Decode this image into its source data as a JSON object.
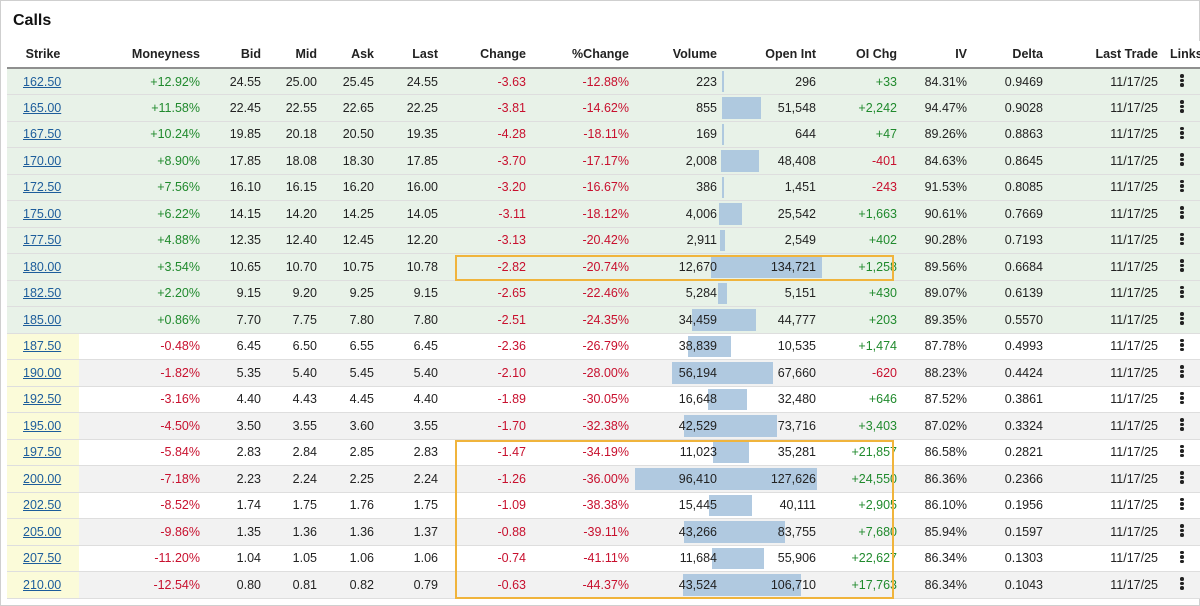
{
  "title": "Calls",
  "columns": [
    "Strike",
    "Moneyness",
    "Bid",
    "Mid",
    "Ask",
    "Last",
    "Change",
    "%Change",
    "Volume",
    "Open Int",
    "OI Chg",
    "IV",
    "Delta",
    "Last Trade",
    "Links"
  ],
  "links_icon": "vertical-ellipsis-icon",
  "colors": {
    "negative": "#c8102e",
    "positive": "#208a2d",
    "itm_row": "#e8f2e8",
    "strike_otm": "#fbfbd9",
    "bar": "#a9c4de",
    "highlight": "#f0b43c"
  },
  "rows": [
    {
      "strike": "162.50",
      "moneyness": "+12.92%",
      "bid": "24.55",
      "mid": "25.00",
      "ask": "25.45",
      "last": "24.55",
      "change": "-3.63",
      "pct_change": "-12.88%",
      "volume": "223",
      "open_int": "296",
      "oi_chg": "+33",
      "iv": "84.31%",
      "delta": "0.9469",
      "last_trade": "11/17/25",
      "itm": true,
      "volume_num": 223,
      "open_int_num": 296
    },
    {
      "strike": "165.00",
      "moneyness": "+11.58%",
      "bid": "22.45",
      "mid": "22.55",
      "ask": "22.65",
      "last": "22.25",
      "change": "-3.81",
      "pct_change": "-14.62%",
      "volume": "855",
      "open_int": "51,548",
      "oi_chg": "+2,242",
      "iv": "94.47%",
      "delta": "0.9028",
      "last_trade": "11/17/25",
      "itm": true,
      "volume_num": 855,
      "open_int_num": 51548
    },
    {
      "strike": "167.50",
      "moneyness": "+10.24%",
      "bid": "19.85",
      "mid": "20.18",
      "ask": "20.50",
      "last": "19.35",
      "change": "-4.28",
      "pct_change": "-18.11%",
      "volume": "169",
      "open_int": "644",
      "oi_chg": "+47",
      "iv": "89.26%",
      "delta": "0.8863",
      "last_trade": "11/17/25",
      "itm": true,
      "volume_num": 169,
      "open_int_num": 644
    },
    {
      "strike": "170.00",
      "moneyness": "+8.90%",
      "bid": "17.85",
      "mid": "18.08",
      "ask": "18.30",
      "last": "17.85",
      "change": "-3.70",
      "pct_change": "-17.17%",
      "volume": "2,008",
      "open_int": "48,408",
      "oi_chg": "-401",
      "iv": "84.63%",
      "delta": "0.8645",
      "last_trade": "11/17/25",
      "itm": true,
      "volume_num": 2008,
      "open_int_num": 48408
    },
    {
      "strike": "172.50",
      "moneyness": "+7.56%",
      "bid": "16.10",
      "mid": "16.15",
      "ask": "16.20",
      "last": "16.00",
      "change": "-3.20",
      "pct_change": "-16.67%",
      "volume": "386",
      "open_int": "1,451",
      "oi_chg": "-243",
      "iv": "91.53%",
      "delta": "0.8085",
      "last_trade": "11/17/25",
      "itm": true,
      "volume_num": 386,
      "open_int_num": 1451
    },
    {
      "strike": "175.00",
      "moneyness": "+6.22%",
      "bid": "14.15",
      "mid": "14.20",
      "ask": "14.25",
      "last": "14.05",
      "change": "-3.11",
      "pct_change": "-18.12%",
      "volume": "4,006",
      "open_int": "25,542",
      "oi_chg": "+1,663",
      "iv": "90.61%",
      "delta": "0.7669",
      "last_trade": "11/17/25",
      "itm": true,
      "volume_num": 4006,
      "open_int_num": 25542
    },
    {
      "strike": "177.50",
      "moneyness": "+4.88%",
      "bid": "12.35",
      "mid": "12.40",
      "ask": "12.45",
      "last": "12.20",
      "change": "-3.13",
      "pct_change": "-20.42%",
      "volume": "2,911",
      "open_int": "2,549",
      "oi_chg": "+402",
      "iv": "90.28%",
      "delta": "0.7193",
      "last_trade": "11/17/25",
      "itm": true,
      "volume_num": 2911,
      "open_int_num": 2549
    },
    {
      "strike": "180.00",
      "moneyness": "+3.54%",
      "bid": "10.65",
      "mid": "10.70",
      "ask": "10.75",
      "last": "10.78",
      "change": "-2.82",
      "pct_change": "-20.74%",
      "volume": "12,670",
      "open_int": "134,721",
      "oi_chg": "+1,258",
      "iv": "89.56%",
      "delta": "0.6684",
      "last_trade": "11/17/25",
      "itm": true,
      "volume_num": 12670,
      "open_int_num": 134721
    },
    {
      "strike": "182.50",
      "moneyness": "+2.20%",
      "bid": "9.15",
      "mid": "9.20",
      "ask": "9.25",
      "last": "9.15",
      "change": "-2.65",
      "pct_change": "-22.46%",
      "volume": "5,284",
      "open_int": "5,151",
      "oi_chg": "+430",
      "iv": "89.07%",
      "delta": "0.6139",
      "last_trade": "11/17/25",
      "itm": true,
      "volume_num": 5284,
      "open_int_num": 5151
    },
    {
      "strike": "185.00",
      "moneyness": "+0.86%",
      "bid": "7.70",
      "mid": "7.75",
      "ask": "7.80",
      "last": "7.80",
      "change": "-2.51",
      "pct_change": "-24.35%",
      "volume": "34,459",
      "open_int": "44,777",
      "oi_chg": "+203",
      "iv": "89.35%",
      "delta": "0.5570",
      "last_trade": "11/17/25",
      "itm": true,
      "volume_num": 34459,
      "open_int_num": 44777
    },
    {
      "strike": "187.50",
      "moneyness": "-0.48%",
      "bid": "6.45",
      "mid": "6.50",
      "ask": "6.55",
      "last": "6.45",
      "change": "-2.36",
      "pct_change": "-26.79%",
      "volume": "38,839",
      "open_int": "10,535",
      "oi_chg": "+1,474",
      "iv": "87.78%",
      "delta": "0.4993",
      "last_trade": "11/17/25",
      "itm": false,
      "volume_num": 38839,
      "open_int_num": 10535
    },
    {
      "strike": "190.00",
      "moneyness": "-1.82%",
      "bid": "5.35",
      "mid": "5.40",
      "ask": "5.45",
      "last": "5.40",
      "change": "-2.10",
      "pct_change": "-28.00%",
      "volume": "56,194",
      "open_int": "67,660",
      "oi_chg": "-620",
      "iv": "88.23%",
      "delta": "0.4424",
      "last_trade": "11/17/25",
      "itm": false,
      "volume_num": 56194,
      "open_int_num": 67660
    },
    {
      "strike": "192.50",
      "moneyness": "-3.16%",
      "bid": "4.40",
      "mid": "4.43",
      "ask": "4.45",
      "last": "4.40",
      "change": "-1.89",
      "pct_change": "-30.05%",
      "volume": "16,648",
      "open_int": "32,480",
      "oi_chg": "+646",
      "iv": "87.52%",
      "delta": "0.3861",
      "last_trade": "11/17/25",
      "itm": false,
      "volume_num": 16648,
      "open_int_num": 32480
    },
    {
      "strike": "195.00",
      "moneyness": "-4.50%",
      "bid": "3.50",
      "mid": "3.55",
      "ask": "3.60",
      "last": "3.55",
      "change": "-1.70",
      "pct_change": "-32.38%",
      "volume": "42,529",
      "open_int": "73,716",
      "oi_chg": "+3,403",
      "iv": "87.02%",
      "delta": "0.3324",
      "last_trade": "11/17/25",
      "itm": false,
      "volume_num": 42529,
      "open_int_num": 73716
    },
    {
      "strike": "197.50",
      "moneyness": "-5.84%",
      "bid": "2.83",
      "mid": "2.84",
      "ask": "2.85",
      "last": "2.83",
      "change": "-1.47",
      "pct_change": "-34.19%",
      "volume": "11,023",
      "open_int": "35,281",
      "oi_chg": "+21,857",
      "iv": "86.58%",
      "delta": "0.2821",
      "last_trade": "11/17/25",
      "itm": false,
      "volume_num": 11023,
      "open_int_num": 35281
    },
    {
      "strike": "200.00",
      "moneyness": "-7.18%",
      "bid": "2.23",
      "mid": "2.24",
      "ask": "2.25",
      "last": "2.24",
      "change": "-1.26",
      "pct_change": "-36.00%",
      "volume": "96,410",
      "open_int": "127,626",
      "oi_chg": "+24,550",
      "iv": "86.36%",
      "delta": "0.2366",
      "last_trade": "11/17/25",
      "itm": false,
      "volume_num": 96410,
      "open_int_num": 127626
    },
    {
      "strike": "202.50",
      "moneyness": "-8.52%",
      "bid": "1.74",
      "mid": "1.75",
      "ask": "1.76",
      "last": "1.75",
      "change": "-1.09",
      "pct_change": "-38.38%",
      "volume": "15,445",
      "open_int": "40,111",
      "oi_chg": "+2,905",
      "iv": "86.10%",
      "delta": "0.1956",
      "last_trade": "11/17/25",
      "itm": false,
      "volume_num": 15445,
      "open_int_num": 40111
    },
    {
      "strike": "205.00",
      "moneyness": "-9.86%",
      "bid": "1.35",
      "mid": "1.36",
      "ask": "1.36",
      "last": "1.37",
      "change": "-0.88",
      "pct_change": "-39.11%",
      "volume": "43,266",
      "open_int": "83,755",
      "oi_chg": "+7,680",
      "iv": "85.94%",
      "delta": "0.1597",
      "last_trade": "11/17/25",
      "itm": false,
      "volume_num": 43266,
      "open_int_num": 83755
    },
    {
      "strike": "207.50",
      "moneyness": "-11.20%",
      "bid": "1.04",
      "mid": "1.05",
      "ask": "1.06",
      "last": "1.06",
      "change": "-0.74",
      "pct_change": "-41.11%",
      "volume": "11,684",
      "open_int": "55,906",
      "oi_chg": "+22,627",
      "iv": "86.34%",
      "delta": "0.1303",
      "last_trade": "11/17/25",
      "itm": false,
      "volume_num": 11684,
      "open_int_num": 55906
    },
    {
      "strike": "210.00",
      "moneyness": "-12.54%",
      "bid": "0.80",
      "mid": "0.81",
      "ask": "0.82",
      "last": "0.79",
      "change": "-0.63",
      "pct_change": "-44.37%",
      "volume": "43,524",
      "open_int": "106,710",
      "oi_chg": "+17,763",
      "iv": "86.34%",
      "delta": "0.1043",
      "last_trade": "11/17/25",
      "itm": false,
      "volume_num": 43524,
      "open_int_num": 106710
    }
  ],
  "highlights": [
    {
      "rows": [
        7,
        7
      ],
      "from_col": "change",
      "to_col": "oi_chg"
    },
    {
      "rows": [
        14,
        19
      ],
      "from_col": "change",
      "to_col": "oi_chg"
    }
  ]
}
